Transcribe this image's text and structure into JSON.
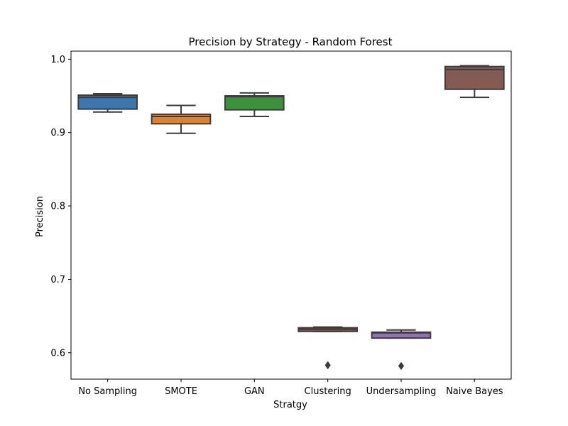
{
  "chart_data": {
    "type": "box",
    "title": "Precision by Strategy - Random Forest",
    "xlabel": "Stratgy",
    "ylabel": "Precision",
    "ylim": [
      0.564,
      1.011
    ],
    "yticks": [
      0.6,
      0.7,
      0.8,
      0.9,
      1.0
    ],
    "ytick_labels": [
      "0.6",
      "0.7",
      "0.8",
      "0.9",
      "1.0"
    ],
    "grid": false,
    "categories": [
      "No Sampling",
      "SMOTE",
      "GAN",
      "Clustering",
      "Undersampling",
      "Naive Bayes"
    ],
    "boxes": [
      {
        "category": "No Sampling",
        "color": "#3a76b0",
        "whislo": 0.928,
        "q1": 0.932,
        "med": 0.948,
        "q3": 0.951,
        "whishi": 0.953,
        "fliers": []
      },
      {
        "category": "SMOTE",
        "color": "#e1812c",
        "whislo": 0.899,
        "q1": 0.912,
        "med": 0.922,
        "q3": 0.925,
        "whishi": 0.937,
        "fliers": []
      },
      {
        "category": "GAN",
        "color": "#3a923a",
        "whislo": 0.922,
        "q1": 0.931,
        "med": 0.949,
        "q3": 0.95,
        "whishi": 0.954,
        "fliers": []
      },
      {
        "category": "Clustering",
        "color": "#c03d3e",
        "whislo": 0.629,
        "q1": 0.629,
        "med": 0.632,
        "q3": 0.634,
        "whishi": 0.635,
        "fliers": [
          0.583
        ]
      },
      {
        "category": "Undersampling",
        "color": "#9372b2",
        "whislo": 0.62,
        "q1": 0.62,
        "med": 0.627,
        "q3": 0.628,
        "whishi": 0.631,
        "fliers": [
          0.582
        ]
      },
      {
        "category": "Naive Bayes",
        "color": "#845b53",
        "whislo": 0.948,
        "q1": 0.959,
        "med": 0.986,
        "q3": 0.99,
        "whishi": 0.991,
        "fliers": []
      }
    ]
  }
}
